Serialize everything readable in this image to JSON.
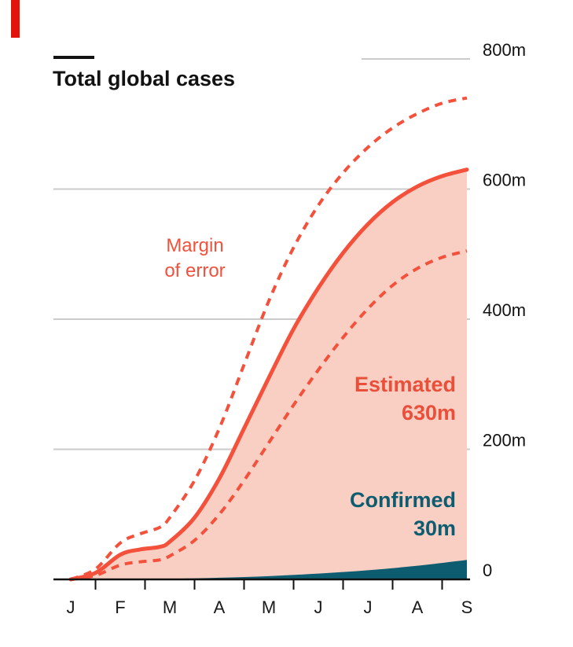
{
  "title": "Total global cases",
  "labels": {
    "margin_of_error": [
      "Margin",
      "of error"
    ],
    "estimated": [
      "Estimated",
      "630m"
    ],
    "confirmed": [
      "Confirmed",
      "30m"
    ]
  },
  "colors": {
    "brand_red": "#e3120b",
    "estimate_line": "#f4513c",
    "estimate_fill": "#f9cfc4",
    "confirmed_fill": "#0d5c70",
    "gridline": "#cbcbcb",
    "axis": "#111111",
    "text": "#121212"
  },
  "chart_data": {
    "type": "area",
    "title": "Total global cases",
    "unit": "millions of cases",
    "x_tick_labels": [
      "J",
      "F",
      "M",
      "A",
      "M",
      "J",
      "J",
      "A",
      "S"
    ],
    "x_range": [
      "January",
      "September"
    ],
    "y_ticks": [
      0,
      200,
      400,
      600,
      800
    ],
    "y_tick_labels": [
      "0",
      "200m",
      "400m",
      "600m",
      "800m"
    ],
    "ylim": [
      0,
      800
    ],
    "grid": true,
    "series": [
      {
        "name": "Estimated",
        "type": "line+area",
        "final_value": 630,
        "final_value_label": "630m",
        "points": [
          [
            0,
            0
          ],
          [
            0.5,
            10
          ],
          [
            1,
            38
          ],
          [
            1.4,
            46
          ],
          [
            1.8,
            50
          ],
          [
            2,
            58
          ],
          [
            2.5,
            95
          ],
          [
            3,
            155
          ],
          [
            3.5,
            232
          ],
          [
            4,
            310
          ],
          [
            4.5,
            385
          ],
          [
            5,
            448
          ],
          [
            5.5,
            502
          ],
          [
            6,
            546
          ],
          [
            6.5,
            580
          ],
          [
            7,
            604
          ],
          [
            7.5,
            620
          ],
          [
            8,
            630
          ]
        ]
      },
      {
        "name": "Margin of error (upper)",
        "type": "dashed-line",
        "final_value": 740,
        "points": [
          [
            0,
            0
          ],
          [
            0.5,
            16
          ],
          [
            1,
            56
          ],
          [
            1.4,
            70
          ],
          [
            1.8,
            80
          ],
          [
            2,
            95
          ],
          [
            2.5,
            152
          ],
          [
            3,
            232
          ],
          [
            3.5,
            330
          ],
          [
            4,
            428
          ],
          [
            4.5,
            510
          ],
          [
            5,
            575
          ],
          [
            5.5,
            625
          ],
          [
            6,
            664
          ],
          [
            6.5,
            694
          ],
          [
            7,
            716
          ],
          [
            7.5,
            732
          ],
          [
            8,
            740
          ]
        ]
      },
      {
        "name": "Margin of error (lower)",
        "type": "dashed-line",
        "final_value": 505,
        "points": [
          [
            0,
            0
          ],
          [
            0.5,
            6
          ],
          [
            1,
            22
          ],
          [
            1.4,
            27
          ],
          [
            1.8,
            30
          ],
          [
            2,
            36
          ],
          [
            2.5,
            60
          ],
          [
            3,
            100
          ],
          [
            3.5,
            152
          ],
          [
            4,
            210
          ],
          [
            4.5,
            268
          ],
          [
            5,
            322
          ],
          [
            5.5,
            372
          ],
          [
            6,
            416
          ],
          [
            6.5,
            452
          ],
          [
            7,
            478
          ],
          [
            7.5,
            495
          ],
          [
            8,
            505
          ]
        ]
      },
      {
        "name": "Confirmed",
        "type": "area",
        "final_value": 30,
        "final_value_label": "30m",
        "points": [
          [
            0,
            0
          ],
          [
            1,
            0.2
          ],
          [
            2,
            0.8
          ],
          [
            3,
            2.5
          ],
          [
            4,
            5
          ],
          [
            5,
            9
          ],
          [
            6,
            14
          ],
          [
            7,
            21
          ],
          [
            8,
            30
          ]
        ]
      }
    ]
  }
}
